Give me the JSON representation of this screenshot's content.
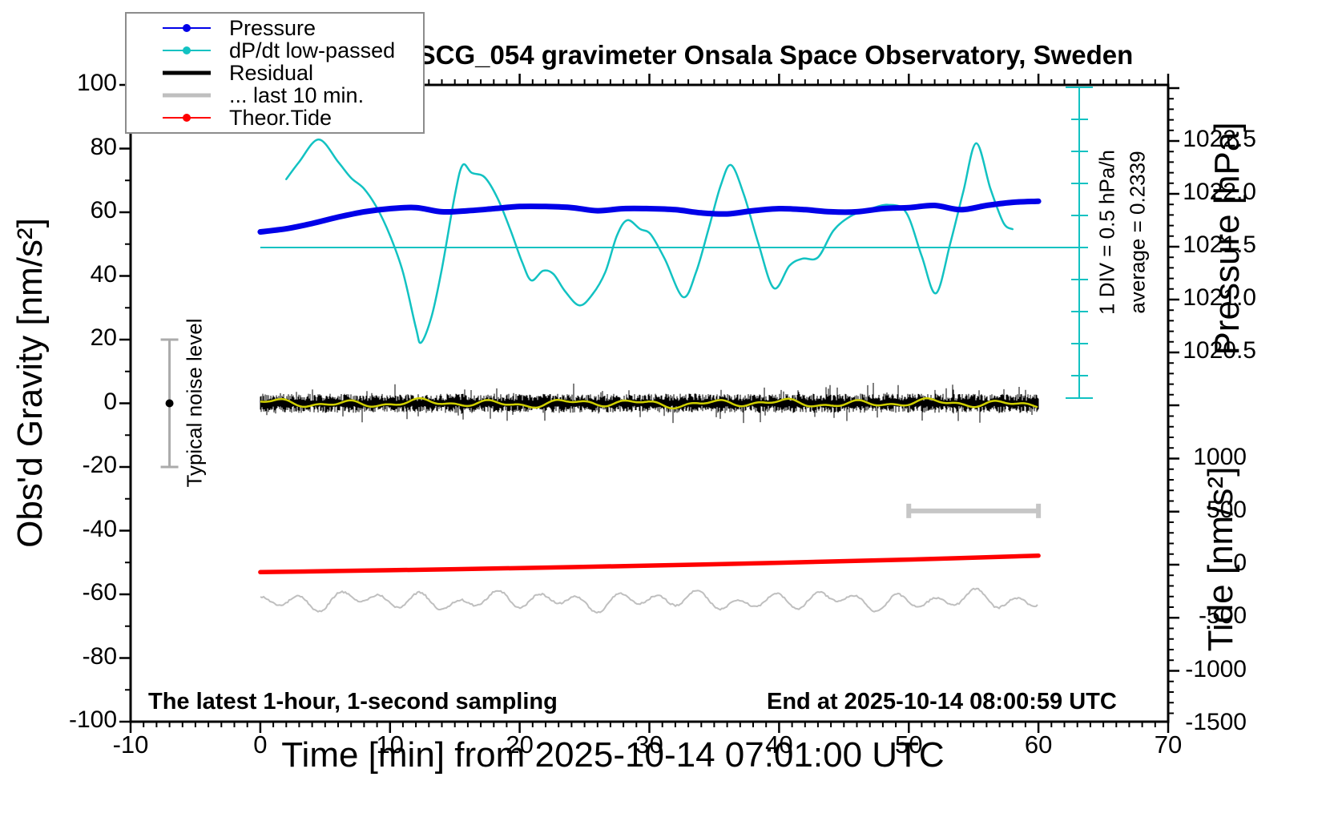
{
  "title": "SCG_054 gravimeter Onsala Space Observatory, Sweden",
  "colors": {
    "pressure": "#0000E8",
    "dpdt": "#12C2C2",
    "residual": "#000000",
    "residual_smooth": "#CFCF00",
    "last10": "#BFBFBF",
    "tide": "#FF0000",
    "noise_bar": "#ABABAB",
    "scale_bar": "#C6C6C6",
    "frame": "#000000",
    "legend_border": "#8C8C8C"
  },
  "legend": {
    "items": [
      {
        "label": "Pressure"
      },
      {
        "label": "dP/dt low-passed"
      },
      {
        "label": "Residual"
      },
      {
        "label": "... last 10 min."
      },
      {
        "label": "Theor.Tide"
      }
    ]
  },
  "axes": {
    "x": {
      "label": "Time [min] from 2025-10-14 07:01:00 UTC",
      "tick_labels": [
        "-10",
        "0",
        "10",
        "20",
        "30",
        "40",
        "50",
        "60",
        "70"
      ],
      "range": [
        -10,
        70
      ],
      "minor_step_min": 1
    },
    "gravity": {
      "label": "Obs'd Gravity [nm/s²]",
      "tick_labels": [
        "100",
        "80",
        "60",
        "40",
        "20",
        "0",
        "-20",
        "-40",
        "-60",
        "-80",
        "-100"
      ],
      "range": [
        -100,
        100
      ],
      "minor_step": 10
    },
    "pressure": {
      "label": "Pressure [hPa]",
      "tick_labels": [
        "1022.5",
        "1022.0",
        "1021.5",
        "1021.0",
        "1020.5"
      ],
      "major_step_hpa": 0.5,
      "minor_step_hpa": 0.1
    },
    "tide": {
      "label": "Tide [nm/s²]",
      "tick_labels": [
        "1000",
        "500",
        "0",
        "-500",
        "-1000",
        "-1500"
      ],
      "major_step": 500,
      "minor_step": 100
    }
  },
  "annotations": {
    "sampling_note": "The latest 1-hour, 1-second sampling",
    "end_note": "End at 2025-10-14 08:00:59 UTC",
    "div_note": "1 DIV = 0.5 hPa/h",
    "average_note": "average = 0.2339",
    "noise_note": "Typical noise level"
  },
  "chart_data": {
    "type": "line",
    "title": "SCG_054 gravimeter Onsala Space Observatory, Sweden",
    "xlabel": "Time [min] from 2025-10-14 07:01:00 UTC",
    "x_range": [
      -10,
      70
    ],
    "grid": false,
    "legend_position": "top-left",
    "axes": {
      "left": {
        "label": "Obs'd Gravity [nm/s²]",
        "range": [
          -100,
          100
        ]
      },
      "right_top": {
        "label": "Pressure [hPa]",
        "visible_ticks": [
          1022.5,
          1022.0,
          1021.5,
          1021.0,
          1020.5
        ]
      },
      "right_bottom": {
        "label": "Tide [nm/s²]",
        "range": [
          -1500,
          1000
        ]
      }
    },
    "series": [
      {
        "name": "Pressure",
        "unit": "hPa",
        "axis": "pressure",
        "color": "#0000E8",
        "x_start_min": 0,
        "x_step_min": 2,
        "values": [
          1021.64,
          1021.67,
          1021.72,
          1021.78,
          1021.83,
          1021.86,
          1021.87,
          1021.83,
          1021.84,
          1021.86,
          1021.88,
          1021.88,
          1021.87,
          1021.84,
          1021.86,
          1021.86,
          1021.85,
          1021.82,
          1021.81,
          1021.84,
          1021.86,
          1021.85,
          1021.83,
          1021.83,
          1021.86,
          1021.87,
          1021.89,
          1021.85,
          1021.89,
          1021.92,
          1021.93
        ]
      },
      {
        "name": "dP/dt low-passed",
        "unit": "hPa/h",
        "axis": "dpdt_scalebar",
        "color": "#12C2C2",
        "average": 0.2339,
        "div_value_hpa_per_h": 0.5,
        "points": [
          [
            2,
            1.3
          ],
          [
            3,
            1.57
          ],
          [
            4.5,
            1.92
          ],
          [
            6,
            1.57
          ],
          [
            7,
            1.32
          ],
          [
            8,
            1.15
          ],
          [
            9,
            0.85
          ],
          [
            10,
            0.42
          ],
          [
            11,
            -0.15
          ],
          [
            12,
            -1.02
          ],
          [
            12.4,
            -1.25
          ],
          [
            13.2,
            -0.85
          ],
          [
            14,
            -0.1
          ],
          [
            15,
            1.05
          ],
          [
            15.6,
            1.52
          ],
          [
            16.3,
            1.4
          ],
          [
            17.3,
            1.33
          ],
          [
            18.3,
            1.0
          ],
          [
            19.3,
            0.5
          ],
          [
            20.2,
            0.0
          ],
          [
            20.9,
            -0.28
          ],
          [
            21.8,
            -0.13
          ],
          [
            22.6,
            -0.18
          ],
          [
            23.5,
            -0.45
          ],
          [
            24.6,
            -0.67
          ],
          [
            25.6,
            -0.5
          ],
          [
            26.6,
            -0.15
          ],
          [
            27.5,
            0.42
          ],
          [
            28.3,
            0.66
          ],
          [
            29.3,
            0.52
          ],
          [
            30.1,
            0.44
          ],
          [
            31.2,
            0.05
          ],
          [
            32.6,
            -0.54
          ],
          [
            33.6,
            -0.15
          ],
          [
            34.6,
            0.55
          ],
          [
            35.5,
            1.2
          ],
          [
            36.3,
            1.52
          ],
          [
            37.3,
            1.05
          ],
          [
            38.4,
            0.3
          ],
          [
            39.6,
            -0.4
          ],
          [
            40.8,
            -0.05
          ],
          [
            41.8,
            0.06
          ],
          [
            43.0,
            0.08
          ],
          [
            44.2,
            0.5
          ],
          [
            45.5,
            0.72
          ],
          [
            46.8,
            0.82
          ],
          [
            48.4,
            0.9
          ],
          [
            49.8,
            0.78
          ],
          [
            51.0,
            0.1
          ],
          [
            52.1,
            -0.48
          ],
          [
            53.2,
            0.3
          ],
          [
            54.2,
            1.1
          ],
          [
            55.2,
            1.86
          ],
          [
            56.3,
            1.15
          ],
          [
            57.3,
            0.62
          ],
          [
            58,
            0.52
          ]
        ]
      },
      {
        "name": "Residual",
        "unit": "nm/s²",
        "axis": "gravity",
        "color": "#000000",
        "x_span_min": [
          0,
          60
        ],
        "center": 0,
        "description": "1-second residual noise band around 0, typical ±2 nm/s² with spikes to ±7"
      },
      {
        "name": "Residual low-passed overlay",
        "unit": "nm/s²",
        "axis": "gravity",
        "color": "#CFCF00",
        "x_span_min": [
          0,
          60
        ],
        "center": 0,
        "description": "smooth yellow line over residual, ±1 nm/s²"
      },
      {
        "name": "... last 10 min.",
        "unit": "nm/s²",
        "axis": "gravity",
        "color": "#BFBFBF",
        "x_span_min": [
          0,
          60
        ],
        "center": -62,
        "description": "gray noise trace near -62 nm/s², ±3 nm/s²"
      },
      {
        "name": "Theor.Tide",
        "unit": "nm/s²",
        "axis": "tide",
        "color": "#FF0000",
        "points": [
          [
            0,
            -70
          ],
          [
            10,
            -52
          ],
          [
            20,
            -32
          ],
          [
            30,
            -8
          ],
          [
            40,
            18
          ],
          [
            50,
            48
          ],
          [
            60,
            85
          ]
        ]
      }
    ],
    "markers": {
      "typical_noise_bar": {
        "x_min": -7,
        "gravity_range": [
          -20,
          20
        ],
        "dot_at": 0
      },
      "ten_minute_scale_bar": {
        "x_range_min": [
          50,
          60
        ],
        "gravity_level": -33.8
      },
      "dpdt_average_line": {
        "value_hpa_per_h": 0.2339
      },
      "dpdt_scale_bar": {
        "divisions": 9,
        "one_div_hpa_per_h": 0.5
      }
    }
  }
}
